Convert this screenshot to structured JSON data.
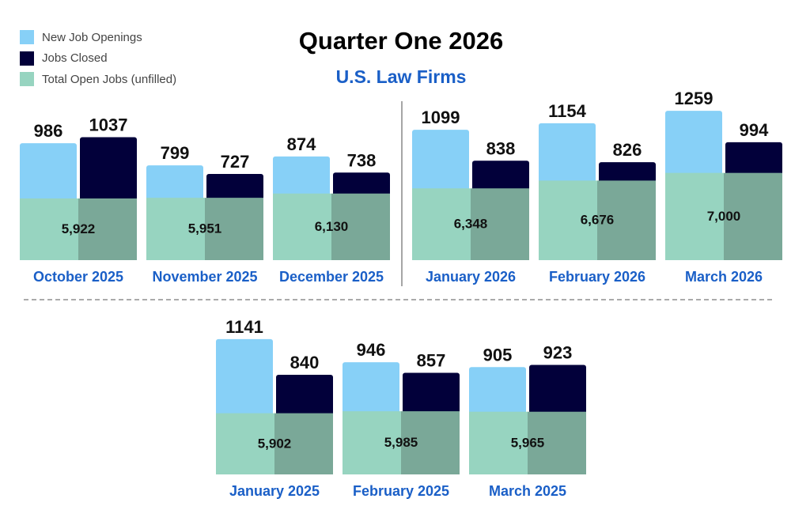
{
  "chart_data": {
    "type": "bar",
    "title": "Quarter One 2026",
    "subtitle": "U.S. Law Firms",
    "legend": [
      {
        "name": "New Job Openings",
        "color": "#87d0f7"
      },
      {
        "name": "Jobs Closed",
        "color": "#02003a"
      },
      {
        "name": "Total Open Jobs (unfilled)",
        "color": "#97d4c0"
      }
    ],
    "legend_placement": "top-left",
    "label_color": "#1a5fc7",
    "rows": [
      {
        "categories": [
          "October 2025",
          "November 2025",
          "December 2025",
          "January 2026",
          "February 2026",
          "March 2026"
        ],
        "series": [
          {
            "name": "New Job Openings",
            "values": [
              986,
              799,
              874,
              1099,
              1154,
              1259
            ]
          },
          {
            "name": "Jobs Closed",
            "values": [
              1037,
              727,
              738,
              838,
              826,
              994
            ]
          },
          {
            "name": "Total Open Jobs (unfilled)",
            "values": [
              "5,922",
              "5,951",
              "6,130",
              "6,348",
              "6,676",
              "7,000"
            ]
          }
        ]
      },
      {
        "categories": [
          "January 2025",
          "February 2025",
          "March 2025"
        ],
        "series": [
          {
            "name": "New Job Openings",
            "values": [
              1141,
              946,
              905
            ]
          },
          {
            "name": "Jobs Closed",
            "values": [
              840,
              857,
              923
            ]
          },
          {
            "name": "Total Open Jobs (unfilled)",
            "values": [
              "5,902",
              "5,985",
              "5,965"
            ]
          }
        ]
      }
    ]
  }
}
